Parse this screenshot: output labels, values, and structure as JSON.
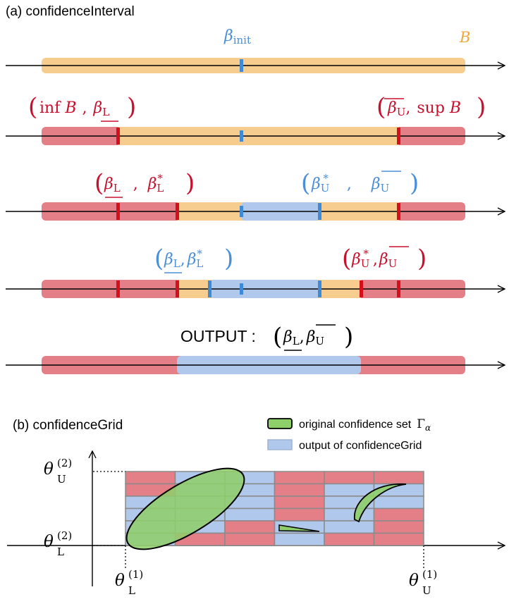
{
  "colors": {
    "orange": "#F7CC8F",
    "red_bar": "#E47E87",
    "red_text": "#C8102E",
    "red_tick": "#D4101E",
    "blue_bar": "#AFC8EC",
    "blue_text": "#4A8FD8",
    "blue_tick": "#3F8AD6",
    "green": "#8FCF6A",
    "grid_line": "#8A8A8A",
    "axis": "#000000"
  },
  "panel_a": {
    "title": "(a) confidenceInterval",
    "row1": {
      "beta_init": "β",
      "beta_init_sub": "init",
      "B": "B"
    },
    "row2": {
      "left": {
        "l1": "inf",
        "l2": "B",
        "l3": "β",
        "l3_sub": "L"
      },
      "right": {
        "r1": "β",
        "r1_sub": "U",
        "r2": "sup",
        "r3": "B"
      }
    },
    "row3": {
      "left": {
        "a": "β",
        "a_sub": "L",
        "b": "β",
        "b_sub": "L",
        "b_sup": "*"
      },
      "right": {
        "a": "β",
        "a_sub": "U",
        "a_sup": "*",
        "b": "β",
        "b_sub": "U"
      }
    },
    "row4": {
      "left": {
        "a": "β",
        "a_sub": "L",
        "b": "β",
        "b_sub": "L",
        "b_sup": "*"
      },
      "right": {
        "a": "β",
        "a_sub": "U",
        "a_sup": "*",
        "b": "β",
        "b_sub": "U"
      }
    },
    "row5": {
      "output_label": "OUTPUT :",
      "a": "β",
      "a_sub": "L",
      "b": "β",
      "b_sub": "U"
    }
  },
  "panel_b": {
    "title": "(b) confidenceGrid",
    "legend": {
      "green_label": "original confidence set",
      "gamma": "Γ",
      "gamma_sub": "α",
      "blue_label": "output of confidenceGrid"
    },
    "axis_labels": {
      "y_upper": {
        "sym": "θ",
        "sub": "U",
        "sup": "(2)"
      },
      "y_lower": {
        "sym": "θ",
        "sub": "L",
        "sup": "(2)"
      },
      "x_lower": {
        "sym": "θ",
        "sub": "L",
        "sup": "(1)"
      },
      "x_upper": {
        "sym": "θ",
        "sub": "U",
        "sup": "(1)"
      }
    }
  }
}
